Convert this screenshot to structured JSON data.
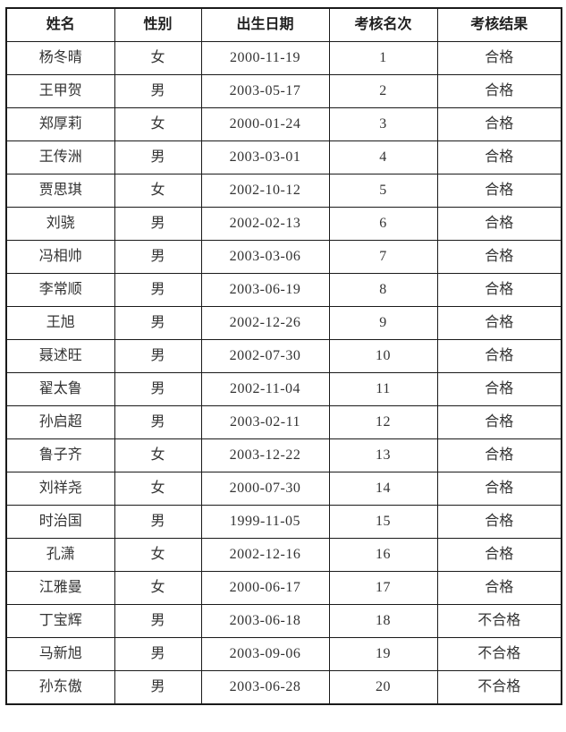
{
  "table": {
    "headers": [
      "姓名",
      "性别",
      "出生日期",
      "考核名次",
      "考核结果"
    ],
    "rows": [
      {
        "name": "杨冬晴",
        "gender": "女",
        "birth_date": "2000-11-19",
        "rank": "1",
        "result": "合格"
      },
      {
        "name": "王甲贺",
        "gender": "男",
        "birth_date": "2003-05-17",
        "rank": "2",
        "result": "合格"
      },
      {
        "name": "郑厚莉",
        "gender": "女",
        "birth_date": "2000-01-24",
        "rank": "3",
        "result": "合格"
      },
      {
        "name": "王传洲",
        "gender": "男",
        "birth_date": "2003-03-01",
        "rank": "4",
        "result": "合格"
      },
      {
        "name": "贾思琪",
        "gender": "女",
        "birth_date": "2002-10-12",
        "rank": "5",
        "result": "合格"
      },
      {
        "name": "刘骁",
        "gender": "男",
        "birth_date": "2002-02-13",
        "rank": "6",
        "result": "合格"
      },
      {
        "name": "冯相帅",
        "gender": "男",
        "birth_date": "2003-03-06",
        "rank": "7",
        "result": "合格"
      },
      {
        "name": "李常顺",
        "gender": "男",
        "birth_date": "2003-06-19",
        "rank": "8",
        "result": "合格"
      },
      {
        "name": "王旭",
        "gender": "男",
        "birth_date": "2002-12-26",
        "rank": "9",
        "result": "合格"
      },
      {
        "name": "聂述旺",
        "gender": "男",
        "birth_date": "2002-07-30",
        "rank": "10",
        "result": "合格"
      },
      {
        "name": "翟太鲁",
        "gender": "男",
        "birth_date": "2002-11-04",
        "rank": "11",
        "result": "合格"
      },
      {
        "name": "孙启超",
        "gender": "男",
        "birth_date": "2003-02-11",
        "rank": "12",
        "result": "合格"
      },
      {
        "name": "鲁子齐",
        "gender": "女",
        "birth_date": "2003-12-22",
        "rank": "13",
        "result": "合格"
      },
      {
        "name": "刘祥尧",
        "gender": "女",
        "birth_date": "2000-07-30",
        "rank": "14",
        "result": "合格"
      },
      {
        "name": "时治国",
        "gender": "男",
        "birth_date": "1999-11-05",
        "rank": "15",
        "result": "合格"
      },
      {
        "name": "孔潇",
        "gender": "女",
        "birth_date": "2002-12-16",
        "rank": "16",
        "result": "合格"
      },
      {
        "name": "江雅曼",
        "gender": "女",
        "birth_date": "2000-06-17",
        "rank": "17",
        "result": "合格"
      },
      {
        "name": "丁宝辉",
        "gender": "男",
        "birth_date": "2003-06-18",
        "rank": "18",
        "result": "不合格"
      },
      {
        "name": "马新旭",
        "gender": "男",
        "birth_date": "2003-09-06",
        "rank": "19",
        "result": "不合格"
      },
      {
        "name": "孙东傲",
        "gender": "男",
        "birth_date": "2003-06-28",
        "rank": "20",
        "result": "不合格"
      }
    ],
    "colors": {
      "border": "#1a1a1a",
      "header_text": "#1f1f1f",
      "body_text": "#333333",
      "background": "#ffffff"
    }
  }
}
